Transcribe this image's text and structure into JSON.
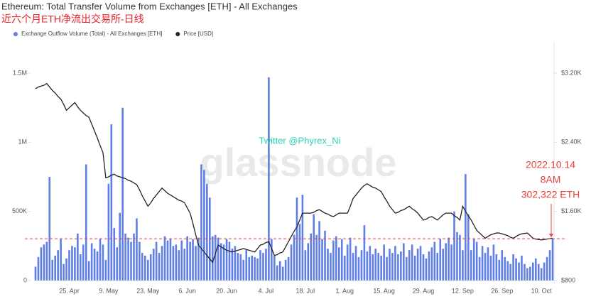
{
  "chart_data": {
    "type": "bar-line",
    "title": "Ethereum: Total Transfer Volume from Exchanges [ETH] - All Exchanges",
    "subtitle": "近六个月ETH净流出交易所-日线",
    "watermarks": [
      "Twitter @Phyrex_Ni",
      "glassnode"
    ],
    "annotations": [
      "2022.10.14",
      "8AM",
      "302,322 ETH"
    ],
    "annotation_color": "#e8413c",
    "categories": [
      null,
      null,
      null,
      null,
      null,
      null,
      null,
      null,
      null,
      null,
      null,
      null,
      "25. Apr",
      null,
      null,
      null,
      null,
      null,
      null,
      null,
      null,
      null,
      null,
      null,
      null,
      null,
      "9. May",
      null,
      null,
      null,
      null,
      null,
      null,
      null,
      null,
      null,
      null,
      null,
      null,
      null,
      "23. May",
      null,
      null,
      null,
      null,
      null,
      null,
      null,
      null,
      null,
      null,
      null,
      null,
      null,
      "6. Jun",
      null,
      null,
      null,
      null,
      null,
      null,
      null,
      null,
      null,
      null,
      null,
      null,
      null,
      "20. Jun",
      null,
      null,
      null,
      null,
      null,
      null,
      null,
      null,
      null,
      null,
      null,
      null,
      null,
      "4. Jul",
      null,
      null,
      null,
      null,
      null,
      null,
      null,
      null,
      null,
      null,
      null,
      null,
      null,
      "18. Jul",
      null,
      null,
      null,
      null,
      null,
      null,
      null,
      null,
      null,
      null,
      null,
      null,
      null,
      "1. Aug",
      null,
      null,
      null,
      null,
      null,
      null,
      null,
      null,
      null,
      null,
      null,
      null,
      null,
      "15. Aug",
      null,
      null,
      null,
      null,
      null,
      null,
      null,
      null,
      null,
      null,
      null,
      null,
      null,
      "29. Aug",
      null,
      null,
      null,
      null,
      null,
      null,
      null,
      null,
      null,
      null,
      null,
      null,
      null,
      "12. Sep",
      null,
      null,
      null,
      null,
      null,
      null,
      null,
      null,
      null,
      null,
      null,
      null,
      null,
      "26. Sep",
      null,
      null,
      null,
      null,
      null,
      null,
      null,
      null,
      null,
      null,
      null,
      null,
      null,
      "10. Oct",
      null,
      null,
      null,
      null
    ],
    "series": [
      {
        "name": "Exchange Outflow Volume (Total) - All Exchanges [ETH]",
        "type": "bar",
        "color": "#5f7fe6",
        "axis": "y",
        "values": [
          100000,
          170000,
          240000,
          260000,
          280000,
          750000,
          150000,
          180000,
          220000,
          300000,
          120000,
          160000,
          220000,
          250000,
          240000,
          340000,
          190000,
          260000,
          840000,
          140000,
          270000,
          230000,
          210000,
          300000,
          260000,
          150000,
          700000,
          1130000,
          380000,
          240000,
          490000,
          1250000,
          340000,
          310000,
          280000,
          340000,
          450000,
          280000,
          200000,
          180000,
          150000,
          190000,
          230000,
          280000,
          200000,
          250000,
          320000,
          290000,
          300000,
          250000,
          260000,
          220000,
          290000,
          230000,
          320000,
          280000,
          300000,
          250000,
          310000,
          840000,
          800000,
          700000,
          600000,
          320000,
          330000,
          310000,
          270000,
          260000,
          300000,
          280000,
          230000,
          250000,
          200000,
          190000,
          150000,
          220000,
          170000,
          180000,
          170000,
          160000,
          220000,
          200000,
          230000,
          1470000,
          300000,
          180000,
          110000,
          140000,
          100000,
          150000,
          170000,
          260000,
          330000,
          600000,
          410000,
          620000,
          220000,
          270000,
          340000,
          480000,
          330000,
          430000,
          300000,
          360000,
          230000,
          200000,
          290000,
          320000,
          240000,
          300000,
          180000,
          260000,
          310000,
          200000,
          250000,
          170000,
          220000,
          400000,
          210000,
          250000,
          190000,
          230000,
          200000,
          180000,
          260000,
          170000,
          230000,
          200000,
          250000,
          190000,
          210000,
          270000,
          170000,
          220000,
          260000,
          180000,
          230000,
          250000,
          190000,
          160000,
          210000,
          240000,
          280000,
          200000,
          300000,
          230000,
          270000,
          310000,
          260000,
          500000,
          350000,
          330000,
          220000,
          770000,
          480000,
          220000,
          300000,
          280000,
          170000,
          250000,
          200000,
          240000,
          180000,
          260000,
          190000,
          150000,
          220000,
          170000,
          140000,
          120000,
          190000,
          160000,
          130000,
          180000,
          120000,
          90000,
          100000,
          130000,
          160000,
          120000,
          90000,
          130000,
          170000,
          220000,
          302322
        ]
      },
      {
        "name": "Price [USD]",
        "type": "line",
        "color": "#222222",
        "axis": "y2",
        "values": [
          3020,
          3040,
          3050,
          3060,
          3080,
          3040,
          3000,
          2970,
          2930,
          2900,
          2840,
          2770,
          2800,
          2830,
          2860,
          2810,
          2770,
          2740,
          2710,
          2690,
          2610,
          2530,
          2450,
          2360,
          2280,
          1990,
          2000,
          2020,
          2030,
          2010,
          2000,
          1990,
          1980,
          1960,
          1950,
          1930,
          1910,
          1850,
          1780,
          1720,
          1660,
          1700,
          1750,
          1790,
          1830,
          1870,
          1840,
          1810,
          1790,
          1770,
          1750,
          1730,
          1720,
          1700,
          1640,
          1580,
          1460,
          1330,
          1210,
          1170,
          1130,
          1090,
          1050,
          1010,
          1110,
          1210,
          1190,
          1170,
          1150,
          1140,
          1130,
          1140,
          1150,
          1160,
          1170,
          1160,
          1150,
          1140,
          1130,
          1170,
          1210,
          1220,
          1240,
          1250,
          1170,
          1090,
          1100,
          1120,
          1130,
          1190,
          1250,
          1310,
          1370,
          1420,
          1500,
          1580,
          1580,
          1580,
          1580,
          1590,
          1610,
          1620,
          1600,
          1580,
          1570,
          1550,
          1540,
          1560,
          1580,
          1580,
          1580,
          1580,
          1660,
          1750,
          1790,
          1830,
          1870,
          1900,
          1920,
          1900,
          1880,
          1870,
          1850,
          1830,
          1770,
          1720,
          1660,
          1620,
          1580,
          1590,
          1610,
          1620,
          1640,
          1660,
          1630,
          1610,
          1580,
          1540,
          1500,
          1510,
          1530,
          1540,
          1520,
          1500,
          1530,
          1560,
          1580,
          1580,
          1580,
          1550,
          1530,
          1500,
          1660,
          1600,
          1550,
          1500,
          1440,
          1380,
          1350,
          1320,
          1290,
          1310,
          1330,
          1340,
          1350,
          1350,
          1340,
          1330,
          1320,
          1300,
          1290,
          1310,
          1330,
          1340,
          1345,
          1350,
          1320,
          1290,
          1280,
          1275,
          1270,
          1275,
          1280,
          1285,
          1290
        ]
      }
    ],
    "ylim": [
      0,
      1500000
    ],
    "yticks": [
      0,
      {
        "value": 500000,
        "label": "500K"
      },
      {
        "value": 1000000,
        "label": "1M"
      },
      {
        "value": 1500000,
        "label": "1.5M"
      }
    ],
    "y2lim": [
      800,
      3200
    ],
    "y2ticks": [
      {
        "value": 800,
        "label": "$800"
      },
      {
        "value": 1600,
        "label": "$1.60K"
      },
      {
        "value": 2400,
        "label": "$2.40K"
      },
      {
        "value": 3200,
        "label": "$3.20K"
      }
    ],
    "grid": false,
    "legend": "top-left"
  }
}
